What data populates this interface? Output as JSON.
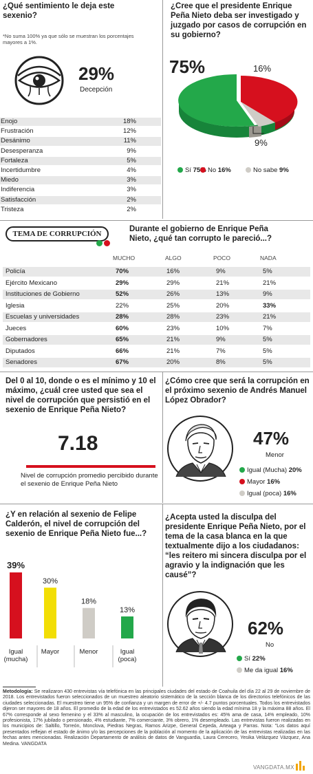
{
  "colors": {
    "green": "#23a84a",
    "red": "#d6101e",
    "grey": "#cfccc6",
    "yellow": "#f2de05"
  },
  "q1": {
    "title": "¿Qué sentimiento le deja este sexenio?",
    "note": "*No suma 100% ya que sólo se muestran los porcentajes mayores a 1%.",
    "highlight_value": "29%",
    "highlight_label": "Decepción",
    "items": [
      {
        "label": "Enojo",
        "value": "18%"
      },
      {
        "label": "Frustración",
        "value": "12%"
      },
      {
        "label": "Desánimo",
        "value": "11%"
      },
      {
        "label": "Desesperanza",
        "value": "9%"
      },
      {
        "label": "Fortaleza",
        "value": "5%"
      },
      {
        "label": "Incertidumbre",
        "value": "4%"
      },
      {
        "label": "Miedo",
        "value": "3%"
      },
      {
        "label": "Indiferencia",
        "value": "3%"
      },
      {
        "label": "Satisfacción",
        "value": "2%"
      },
      {
        "label": "Tristeza",
        "value": "2%"
      }
    ]
  },
  "q2": {
    "title": "¿Cree que el presidente Enrique Peña Nieto deba ser investigado y juzgado por casos de corrupción en su gobierno?",
    "labels": {
      "big": "75%",
      "red": "16%",
      "grey": "9%"
    },
    "legend": [
      {
        "label": "Sí ",
        "value": "75%"
      },
      {
        "label": "No ",
        "value": "16%"
      },
      {
        "label": "No sabe ",
        "value": "9%"
      }
    ]
  },
  "section_tag": "TEMA DE CORRUPCIÓN",
  "q3": {
    "title": "Durante el gobierno de Enrique Peña Nieto, ¿qué tan corrupto le pareció...?",
    "columns": [
      "MUCHO",
      "ALGO",
      "POCO",
      "NADA"
    ],
    "rows": [
      {
        "label": "Policía",
        "cells": [
          "70%",
          "16%",
          "9%",
          "5%"
        ],
        "bold": 0
      },
      {
        "label": "Ejército Mexicano",
        "cells": [
          "29%",
          "29%",
          "21%",
          "21%"
        ],
        "bold": 0
      },
      {
        "label": "Instituciones de Gobierno",
        "cells": [
          "52%",
          "26%",
          "13%",
          "9%"
        ],
        "bold": 0
      },
      {
        "label": "Iglesia",
        "cells": [
          "22%",
          "25%",
          "20%",
          "33%"
        ],
        "bold": 3
      },
      {
        "label": "Escuelas y universidades",
        "cells": [
          "28%",
          "28%",
          "23%",
          "21%"
        ],
        "bold": 0
      },
      {
        "label": "Jueces",
        "cells": [
          "60%",
          "23%",
          "10%",
          "7%"
        ],
        "bold": 0
      },
      {
        "label": "Gobernadores",
        "cells": [
          "65%",
          "21%",
          "9%",
          "5%"
        ],
        "bold": 0
      },
      {
        "label": "Diputados",
        "cells": [
          "66%",
          "21%",
          "7%",
          "5%"
        ],
        "bold": 0
      },
      {
        "label": "Senadores",
        "cells": [
          "67%",
          "20%",
          "8%",
          "5%"
        ],
        "bold": 0
      }
    ]
  },
  "q4": {
    "title": "Del 0 al 10, donde o es el mínimo y 10 el máximo, ¿cuál cree usted que sea el nivel de corrupción que persistió en el sexenio de Enrique Peña Nieto?",
    "value": "7.18",
    "caption": "Nivel de corrupción promedio percibido durante el sexenio de Enrique Peña Nieto"
  },
  "q5": {
    "title": "¿Cómo cree que será la corrupción en el próximo sexenio de Andrés Manuel López Obrador?",
    "highlight_value": "47%",
    "highlight_label": "Menor",
    "legend": [
      {
        "label": "Igual (Mucha) ",
        "value": "20%"
      },
      {
        "label": "Mayor ",
        "value": "16%"
      },
      {
        "label": "Igual (poca) ",
        "value": "16%"
      }
    ]
  },
  "q6": {
    "title": "¿Y en relación al sexenio de Felipe Calderón, el nivel de corrupción del sexenio de Enrique Peña Nieto fue...?",
    "chart_data": {
      "type": "bar",
      "categories": [
        "Igual (mucha)",
        "Mayor",
        "Menor",
        "Igual (poca)"
      ],
      "values": [
        39,
        30,
        18,
        13
      ],
      "value_labels": [
        "39%",
        "30%",
        "18%",
        "13%"
      ],
      "title": "",
      "xlabel": "",
      "ylabel": ""
    }
  },
  "q7": {
    "title": "¿Acepta usted la disculpa del presidente Enrique Peña Nieto, por el tema de la casa blanca en la que textualmente dijo a los ciudadanos: “les reitero mi sincera disculpa por el agravio y la indignación que les causé”?",
    "highlight_value": "62%",
    "highlight_label": "No",
    "legend": [
      {
        "label": "Sí ",
        "value": "22%"
      },
      {
        "label": "Me da igual ",
        "value": "16%"
      }
    ]
  },
  "methodology": {
    "label": "Metodología:",
    "text": "Metodología: Se realizaron 430 entrevistas vía telefónica en las principales ciudades del estado de Coahuila del día 22 al 29 de noviembre de 2018. Los entrevistados fueron seleccionados de un muestreo aleatorio sistemático de la sección blanca de los directorios telefónicos de las ciudades seleccionadas. El muestreo tiene un 95% de confianza y un margen de error de +/- 4.7 puntos porcentuales. Todos los entrevistados dijeron ser mayores de 18 años. El promedio de la edad de los entrevistados es 52.62 años siendo la edad mínima 18 y la máxima 88 años. El 67% corresponde al sexo femenino y el 33% al masculino, la ocupación de los entrevistados es: 45% ama de casa, 14% empleado, 10% profesionista, 17% jubilado o pensionado, 4% estudiante, 7% comerciante, 3% obrero, 1% desempleado. Las entrevistas fueron realizadas en los municipios de: Saltillo, Torreón, Monclova, Piedras Negras, Ramos Arizpe, General Cepeda, Arteaga y Parras. Nota: \"Los datos aquí presentados reflejan el estado de ánimo y/o las percepciones de la población al momento de la aplicación de las entrevistas realizadas en las fechas antes mencionadas. Realización Departamento de análisis de datos de Vanguardia, Laura Cerecero, Yesika Velázquez Vázquez, Ana Medina. VANGDATA"
  },
  "brand": "VANGDATA.MX"
}
